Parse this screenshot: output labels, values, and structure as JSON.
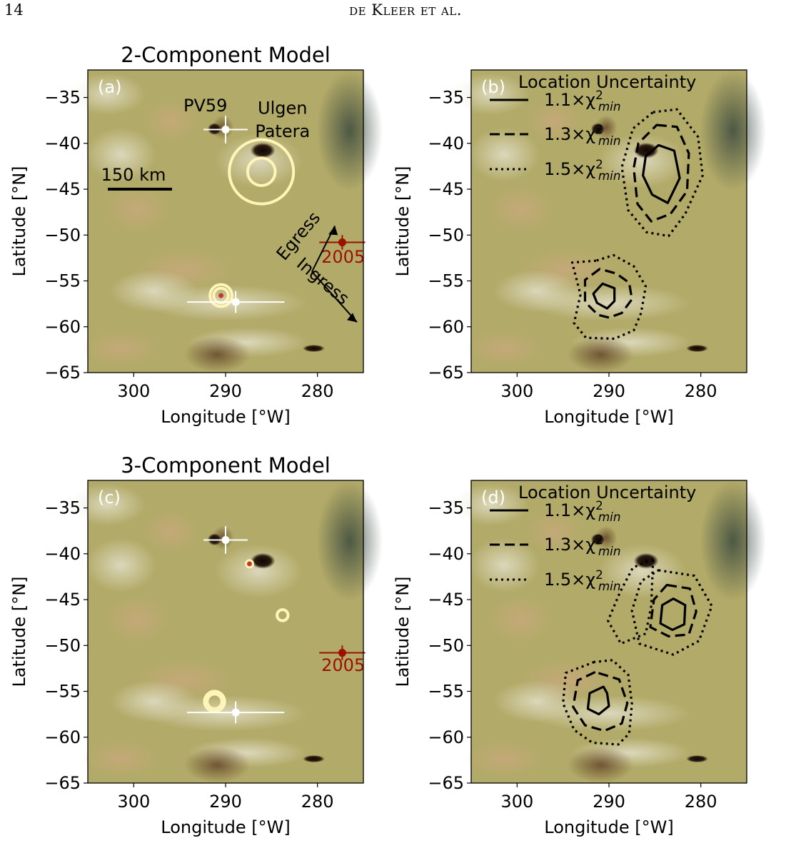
{
  "header": {
    "page_number": "14",
    "running_head": "de Kleer et al."
  },
  "colors": {
    "ring": "#fff5b8",
    "red_marker": "#9b1000",
    "white_marker": "#ffffff",
    "map_base": "#b2aa68"
  },
  "chart_data": [
    {
      "type": "scatter",
      "panel": "(a)",
      "title": "2-Component Model",
      "xlabel": "Longitude [°W]",
      "ylabel": "Latitude [°N]",
      "xlim": [
        305,
        275
      ],
      "ylim": [
        -65,
        -32
      ],
      "xticks": [
        "300",
        "290",
        "280"
      ],
      "yticks": [
        "−35",
        "−40",
        "−45",
        "−50",
        "−55",
        "−60",
        "−65"
      ],
      "background": "Io surface map",
      "scale_bar_label": "150 km",
      "annotations": [
        {
          "text": "PV59",
          "x": 292.2,
          "y": -36.5
        },
        {
          "text": "Ulgen",
          "x": 283.8,
          "y": -36.8
        },
        {
          "text": "Patera",
          "x": 283.8,
          "y": -39.3
        },
        {
          "text": "Egress",
          "x": 281.6,
          "y": -50.5
        },
        {
          "text": "Ingress",
          "x": 279.8,
          "y": -55.5
        },
        {
          "text": "2005",
          "x": 277.2,
          "y": -53.0,
          "color": "#9b1000"
        }
      ],
      "points": [
        {
          "name": "PV59",
          "x": 290.0,
          "y": -38.5,
          "xerr": 2.4,
          "yerr": 1.5,
          "color": "#ffffff"
        },
        {
          "name": "southern",
          "x": 288.9,
          "y": -57.3,
          "xerr": 5.3,
          "yerr": 1.2,
          "color": "#ffffff"
        },
        {
          "name": "2005",
          "x": 277.3,
          "y": -50.8,
          "xerr": 2.5,
          "yerr": 0.8,
          "color": "#9b1000"
        }
      ],
      "fit_components": [
        {
          "x": 286.1,
          "y": -43.1,
          "sizes": [
            1.5,
            3.5
          ]
        },
        {
          "x": 290.5,
          "y": -56.6,
          "sizes": [
            1.2,
            0.8
          ],
          "core": true
        }
      ]
    },
    {
      "type": "contour",
      "panel": "(b)",
      "xlabel": "Longitude [°W]",
      "ylabel": "Latitude [°N]",
      "xlim": [
        305,
        275
      ],
      "ylim": [
        -65,
        -32
      ],
      "xticks": [
        "300",
        "290",
        "280"
      ],
      "yticks": [
        "−35",
        "−40",
        "−45",
        "−50",
        "−55",
        "−60",
        "−65"
      ],
      "legend_title": "Location Uncertainty",
      "legend": [
        "1.1×χ²min",
        "1.3×χ²min",
        "1.5×χ²min"
      ],
      "contours": [
        {
          "level": "1.1",
          "polygons": [
            [
              [
                284.6,
                -40.2
              ],
              [
                282.9,
                -40.8
              ],
              [
                282.3,
                -43.8
              ],
              [
                283.6,
                -46.5
              ],
              [
                285.3,
                -45.6
              ],
              [
                286.3,
                -43.5
              ],
              [
                286.0,
                -41.4
              ]
            ]
          ]
        },
        {
          "level": "1.3",
          "polygons": [
            [
              [
                284.8,
                -38.0
              ],
              [
                282.6,
                -38.2
              ],
              [
                281.3,
                -41.1
              ],
              [
                281.5,
                -45.2
              ],
              [
                283.3,
                -47.7
              ],
              [
                285.4,
                -48.5
              ],
              [
                286.9,
                -46.6
              ],
              [
                287.3,
                -42.7
              ],
              [
                286.8,
                -40.0
              ]
            ]
          ]
        },
        {
          "level": "1.5",
          "polygons": [
            [
              [
                285.2,
                -36.6
              ],
              [
                282.6,
                -36.3
              ],
              [
                280.3,
                -39.3
              ],
              [
                279.8,
                -43.5
              ],
              [
                281.7,
                -47.7
              ],
              [
                283.5,
                -50.1
              ],
              [
                285.9,
                -49.7
              ],
              [
                287.9,
                -47.3
              ],
              [
                288.6,
                -42.6
              ],
              [
                287.4,
                -38.4
              ]
            ]
          ]
        },
        {
          "level": "1.1",
          "polygons": [
            [
              [
                290.7,
                -55.3
              ],
              [
                291.7,
                -56.4
              ],
              [
                291.3,
                -57.4
              ],
              [
                290.2,
                -58.0
              ],
              [
                289.4,
                -57.2
              ],
              [
                289.4,
                -55.8
              ]
            ]
          ]
        },
        {
          "level": "1.3",
          "polygons": [
            [
              [
                291.0,
                -53.7
              ],
              [
                292.6,
                -54.9
              ],
              [
                292.6,
                -57.3
              ],
              [
                291.2,
                -58.7
              ],
              [
                290.0,
                -59.0
              ],
              [
                288.6,
                -58.5
              ],
              [
                287.5,
                -57.0
              ],
              [
                287.8,
                -55.2
              ],
              [
                289.2,
                -54.2
              ]
            ]
          ]
        },
        {
          "level": "1.5",
          "polygons": [
            [
              [
                291.4,
                -52.8
              ],
              [
                294.0,
                -53.0
              ],
              [
                293.1,
                -56.5
              ],
              [
                293.8,
                -59.6
              ],
              [
                292.5,
                -61.2
              ],
              [
                289.4,
                -61.3
              ],
              [
                287.3,
                -60.4
              ],
              [
                286.5,
                -58.5
              ],
              [
                286.0,
                -55.6
              ],
              [
                287.3,
                -53.4
              ],
              [
                289.5,
                -52.2
              ]
            ]
          ]
        }
      ]
    },
    {
      "type": "scatter",
      "panel": "(c)",
      "title": "3-Component Model",
      "xlabel": "Longitude [°W]",
      "ylabel": "Latitude [°N]",
      "xlim": [
        305,
        275
      ],
      "ylim": [
        -65,
        -32
      ],
      "xticks": [
        "300",
        "290",
        "280"
      ],
      "yticks": [
        "−35",
        "−40",
        "−45",
        "−50",
        "−55",
        "−60",
        "−65"
      ],
      "background": "Io surface map",
      "annotations": [
        {
          "text": "2005",
          "x": 277.2,
          "y": -52.8,
          "color": "#9b1000"
        }
      ],
      "points": [
        {
          "name": "PV59",
          "x": 290.0,
          "y": -38.5,
          "xerr": 2.4,
          "yerr": 1.5,
          "color": "#ffffff"
        },
        {
          "name": "southern",
          "x": 288.9,
          "y": -57.3,
          "xerr": 5.3,
          "yerr": 1.2,
          "color": "#ffffff"
        },
        {
          "name": "2005",
          "x": 277.3,
          "y": -50.8,
          "xerr": 2.5,
          "yerr": 0.8,
          "color": "#9b1000"
        }
      ],
      "fit_components": [
        {
          "x": 287.4,
          "y": -41.1,
          "sizes": [
            0.35
          ],
          "core": true
        },
        {
          "x": 283.8,
          "y": -46.7,
          "sizes": [
            0.6
          ]
        },
        {
          "x": 291.2,
          "y": -56.1,
          "sizes": [
            0.8,
            1.1
          ]
        }
      ]
    },
    {
      "type": "contour",
      "panel": "(d)",
      "xlabel": "Longitude [°W]",
      "ylabel": "Latitude [°N]",
      "xlim": [
        305,
        275
      ],
      "ylim": [
        -65,
        -32
      ],
      "xticks": [
        "300",
        "290",
        "280"
      ],
      "yticks": [
        "−35",
        "−40",
        "−45",
        "−50",
        "−55",
        "−60",
        "−65"
      ],
      "legend_title": "Location Uncertainty",
      "legend": [
        "1.1×χ²min",
        "1.3×χ²min",
        "1.5×χ²min"
      ],
      "contours": [
        {
          "level": "1.1",
          "polygons": [
            [
              [
                283.0,
                -44.9
              ],
              [
                281.7,
                -45.6
              ],
              [
                281.8,
                -47.7
              ],
              [
                283.1,
                -48.3
              ],
              [
                284.4,
                -47.6
              ],
              [
                284.2,
                -45.6
              ]
            ]
          ]
        },
        {
          "level": "1.3",
          "polygons": [
            [
              [
                283.7,
                -43.4
              ],
              [
                281.2,
                -43.8
              ],
              [
                280.5,
                -46.3
              ],
              [
                281.3,
                -48.8
              ],
              [
                283.5,
                -49.0
              ],
              [
                285.5,
                -48.0
              ],
              [
                285.1,
                -45.0
              ]
            ]
          ]
        },
        {
          "level": "1.5",
          "polygons": [
            [
              [
                284.6,
                -41.8
              ],
              [
                280.7,
                -42.4
              ],
              [
                278.8,
                -45.7
              ],
              [
                280.2,
                -49.5
              ],
              [
                283.0,
                -51.0
              ],
              [
                286.7,
                -49.8
              ],
              [
                287.5,
                -46.2
              ],
              [
                286.5,
                -43.0
              ]
            ]
          ]
        },
        {
          "level": "1.5",
          "polygons": [
            [
              [
                285.2,
                -40.6
              ],
              [
                287.4,
                -41.5
              ],
              [
                288.8,
                -44.2
              ],
              [
                290.1,
                -47.3
              ],
              [
                288.7,
                -49.8
              ],
              [
                286.0,
                -48.7
              ],
              [
                285.4,
                -45.7
              ]
            ]
          ]
        },
        {
          "level": "1.1",
          "polygons": [
            [
              [
                290.6,
                -54.5
              ],
              [
                292.1,
                -55.2
              ],
              [
                292.3,
                -56.9
              ],
              [
                291.1,
                -57.5
              ],
              [
                290.0,
                -56.6
              ],
              [
                290.2,
                -55.2
              ]
            ]
          ]
        },
        {
          "level": "1.3",
          "polygons": [
            [
              [
                291.5,
                -52.9
              ],
              [
                293.4,
                -53.8
              ],
              [
                293.9,
                -56.7
              ],
              [
                292.6,
                -58.7
              ],
              [
                290.5,
                -59.3
              ],
              [
                288.6,
                -58.5
              ],
              [
                288.0,
                -56.3
              ],
              [
                288.9,
                -53.7
              ]
            ]
          ]
        },
        {
          "level": "1.5",
          "polygons": [
            [
              [
                291.6,
                -51.8
              ],
              [
                294.7,
                -53.0
              ],
              [
                295.0,
                -56.3
              ],
              [
                293.8,
                -59.2
              ],
              [
                291.8,
                -60.6
              ],
              [
                289.0,
                -60.8
              ],
              [
                287.8,
                -59.6
              ],
              [
                287.5,
                -56.4
              ],
              [
                287.9,
                -53.2
              ],
              [
                289.6,
                -51.6
              ]
            ]
          ]
        }
      ]
    }
  ]
}
